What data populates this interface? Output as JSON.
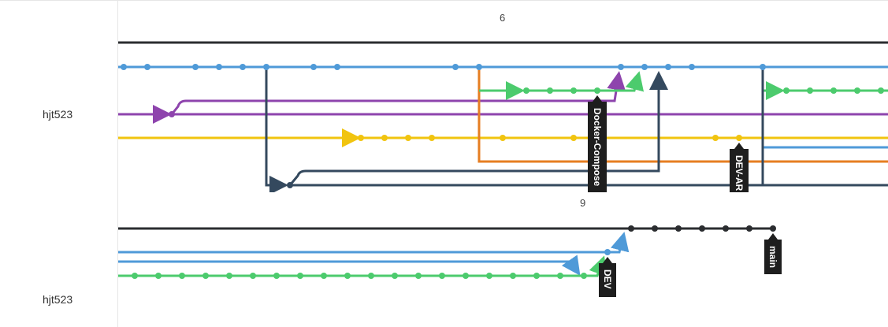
{
  "top_panel": {
    "owner": "hjt523",
    "month_label": "6",
    "tags": [
      "Docker-Compose",
      "DEV-AR"
    ]
  },
  "bottom_panel": {
    "owner": "hjt523",
    "month_label": "9",
    "tags": [
      "DEV",
      "main"
    ]
  },
  "colors": {
    "black": "#2b2d30",
    "blue": "#4f9ad8",
    "purple": "#8e44ad",
    "yellow": "#f1c40f",
    "orange": "#e67e22",
    "green": "#4ccb6d",
    "navy": "#34495e",
    "tag_bg": "#1e1e1e"
  }
}
